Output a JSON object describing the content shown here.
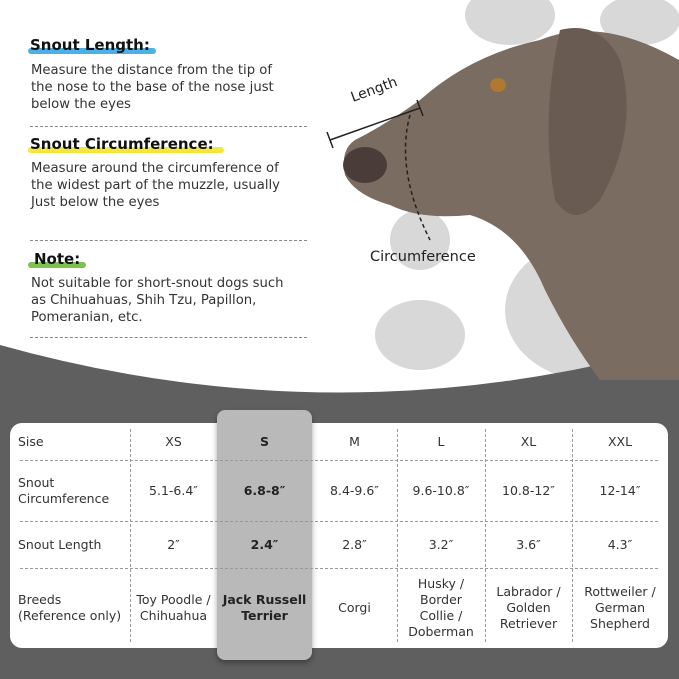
{
  "instructions": [
    {
      "heading": "Snout Length:",
      "highlight": "#4ab0e6",
      "text": "Measure the distance from the tip of the nose to the base of the nose just below the eyes"
    },
    {
      "heading": "Snout Circumference:",
      "highlight": "#f5e63c",
      "text": "Measure around the circumference of the widest part of the muzzle, usually Just below the eyes"
    },
    {
      "heading": "Note:",
      "highlight": "#7cc24e",
      "text": "Not suitable for short-snout dogs such as Chihuahuas, Shih Tzu, Papillon, Pomeranian, etc."
    }
  ],
  "diagram": {
    "length_label": "Length",
    "circumference_label": "Circumference"
  },
  "table": {
    "row_labels": [
      "Sise",
      "Snout Circumference",
      "Snout Length",
      "Breeds (Reference only)"
    ],
    "highlighted_size": "S",
    "columns": [
      {
        "size": "XS",
        "circumference": "5.1-6.4″",
        "length": "2″",
        "breeds": "Toy Poodle / Chihuahua"
      },
      {
        "size": "S",
        "circumference": "6.8-8″",
        "length": "2.4″",
        "breeds": "Jack Russell Terrier"
      },
      {
        "size": "M",
        "circumference": "8.4-9.6″",
        "length": "2.8″",
        "breeds": "Corgi"
      },
      {
        "size": "L",
        "circumference": "9.6-10.8″",
        "length": "3.2″",
        "breeds": "Husky / Border Collie / Doberman"
      },
      {
        "size": "XL",
        "circumference": "10.8-12″",
        "length": "3.6″",
        "breeds": "Labrador / Golden Retriever"
      },
      {
        "size": "XXL",
        "circumference": "12-14″",
        "length": "4.3″",
        "breeds": "Rottweiler / German Shepherd"
      }
    ]
  },
  "colors": {
    "dark_bg": "#5f5f5f",
    "paw": "#d6d6d6",
    "dog": "#7a6a60",
    "highlight_col": "#b9b9b9"
  }
}
